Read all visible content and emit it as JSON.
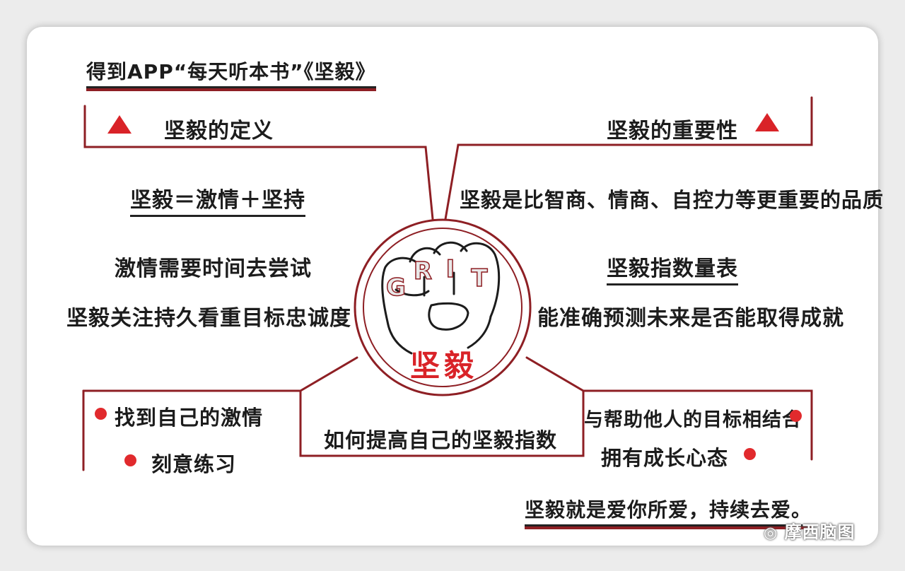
{
  "header": {
    "title": "得到APP“每天听本书”《坚毅》"
  },
  "definition": {
    "heading": "坚毅的定义",
    "formula": "坚毅＝激情＋坚持",
    "line1": "激情需要时间去尝试",
    "line2": "坚毅关注持久看重目标忠诚度"
  },
  "importance": {
    "heading": "坚毅的重要性",
    "line1": "坚毅是比智商、情商、自控力等更重要的品质",
    "scale_title": "坚毅指数量表",
    "line2": "能准确预测未来是否能取得成就"
  },
  "center": {
    "knuckles": [
      "G",
      "R",
      "I",
      "T"
    ],
    "label": "坚毅"
  },
  "improve": {
    "heading": "如何提高自己的坚毅指数",
    "left_items": [
      "找到自己的激情",
      "刻意练习"
    ],
    "right_items": [
      "与帮助他人的目标相结合",
      "拥有成长心态"
    ]
  },
  "footer": {
    "quote": "坚毅就是爱你所爱，持续去爱。"
  },
  "watermark": {
    "text": "摩西脑图"
  },
  "colors": {
    "accent": "#8e1f24",
    "red": "#d92328",
    "ink": "#1c1c1c"
  }
}
